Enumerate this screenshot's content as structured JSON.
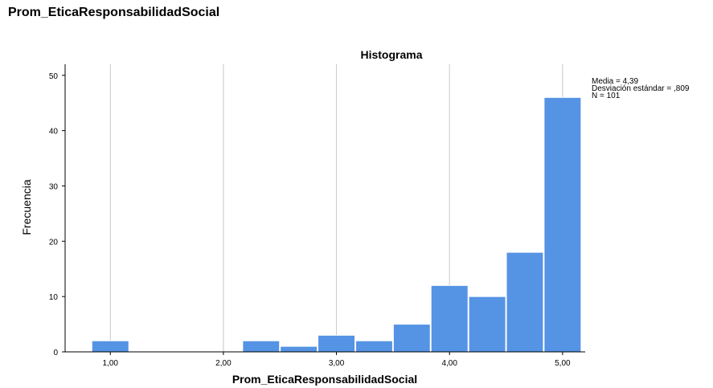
{
  "page": {
    "heading": "Prom_EticaResponsabilidadSocial"
  },
  "chart_data": {
    "type": "bar",
    "title": "Histograma",
    "xlabel": "Prom_EticaResponsabilidadSocial",
    "ylabel": "Frecuencia",
    "x_ticks": [
      "1,00",
      "2,00",
      "3,00",
      "4,00",
      "5,00"
    ],
    "x_tick_values": [
      1,
      2,
      3,
      4,
      5
    ],
    "xlim": [
      0.6,
      5.2
    ],
    "y_ticks": [
      0,
      10,
      20,
      30,
      40,
      50
    ],
    "ylim": [
      0,
      52
    ],
    "bin_width": 0.333,
    "bins": [
      {
        "x0": 0.833,
        "x1": 1.167,
        "count": 2
      },
      {
        "x0": 2.167,
        "x1": 2.5,
        "count": 2
      },
      {
        "x0": 2.5,
        "x1": 2.833,
        "count": 1
      },
      {
        "x0": 2.833,
        "x1": 3.167,
        "count": 3
      },
      {
        "x0": 3.167,
        "x1": 3.5,
        "count": 2
      },
      {
        "x0": 3.5,
        "x1": 3.833,
        "count": 5
      },
      {
        "x0": 3.833,
        "x1": 4.167,
        "count": 12
      },
      {
        "x0": 4.167,
        "x1": 4.5,
        "count": 10
      },
      {
        "x0": 4.5,
        "x1": 4.833,
        "count": 18
      },
      {
        "x0": 4.833,
        "x1": 5.167,
        "count": 46
      }
    ],
    "stats": {
      "mean": "Media = 4,39",
      "sd": "Desviación estándar = ,809",
      "n": "N = 101"
    },
    "grid": "vertical",
    "legend": "top-right",
    "colors": {
      "bar": "#5593e4",
      "grid": "#c8c8c8",
      "axis": "#000000"
    }
  }
}
